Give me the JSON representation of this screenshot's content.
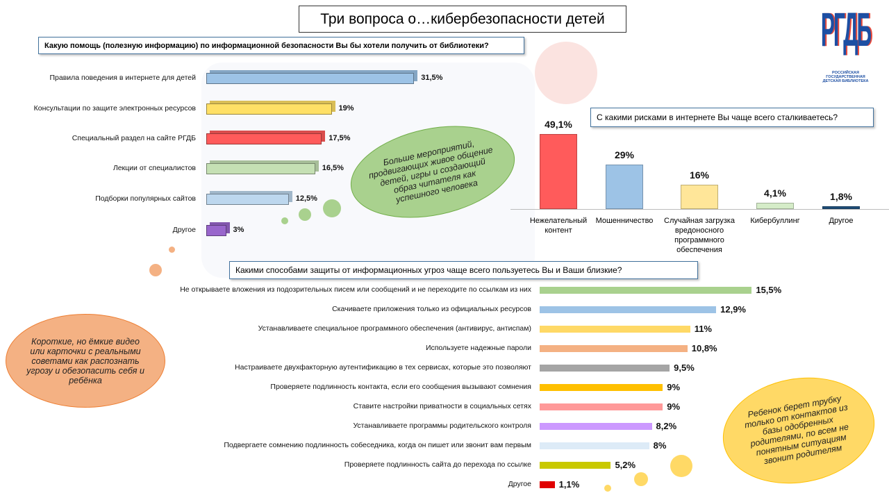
{
  "title": "Три вопроса о…кибербезопасности детей",
  "logo": {
    "mark": "РГДБ",
    "line1": "РОССИЙСКАЯ ГОСУДАРСТВЕННАЯ",
    "line2": "ДЕТСКАЯ БИБЛИОТЕКА"
  },
  "notes": [
    "Больше мероприятий, продвигающих живое общение детей, игры и создающий образ читателя как успешного человека",
    "Короткие, но ёмкие видео или карточки с реальными советами как распознать угрозу и обезопасить себя и ребёнка",
    "Ребенок берет трубку только от контактов из базы одобренных родителями, по всем не понятным ситуациям звонит родителям"
  ],
  "chart_data": [
    {
      "type": "hbar3d",
      "title": "Какую помощь (полезную информацию) по информационной безопасности Вы бы хотели получить от библиотеки?",
      "categories": [
        "Правила поведения в интернете для детей",
        "Консультации по защите электронных ресурсов",
        "Специальный раздел на сайте РГДБ",
        "Лекции от специалистов",
        "Подборки популярных сайтов",
        "Другое"
      ],
      "values": [
        31.5,
        19,
        17.5,
        16.5,
        12.5,
        3
      ],
      "value_labels": [
        "31,5%",
        "19%",
        "17,5%",
        "16,5%",
        "12,5%",
        "3%"
      ],
      "colors": [
        "#9dc3e6",
        "#ffe066",
        "#ff5b5b",
        "#c5e0b4",
        "#bdd7ee",
        "#9966cc"
      ]
    },
    {
      "type": "vbar",
      "title": "С какими рисками в интернете Вы чаще всего сталкиваетесь?",
      "categories": [
        "Нежелательный контент",
        "Мошенничество",
        "Случайная загрузка вредоносного программного обеспечения",
        "Кибербуллинг",
        "Другое"
      ],
      "values": [
        49.1,
        29,
        16,
        4.1,
        1.8
      ],
      "value_labels": [
        "49,1%",
        "29%",
        "16%",
        "4,1%",
        "1,8%"
      ],
      "colors": [
        "#ff5b5b",
        "#9dc3e6",
        "#ffe699",
        "#d5ecc8",
        "#1f4e79"
      ]
    },
    {
      "type": "hbar",
      "title": "Какими способами защиты от информационных угроз чаще всего пользуетесь Вы и Ваши близкие?",
      "categories": [
        "Не открываете вложения из подозрительных писем или сообщений и не переходите по ссылкам из них",
        "Скачиваете приложения только из официальных ресурсов",
        "Устанавливаете специальное программного обеспечения (антивирус, антиспам)",
        "Используете надежные пароли",
        "Настраиваете двухфакторную аутентификацию в тех сервисах, которые это позволяют",
        "Проверяете подлинность контакта, если его сообщения вызывают сомнения",
        "Ставите настройки приватности в социальных сетях",
        "Устанавливаете программы родительского контроля",
        "Подвергаете сомнению подлинность собеседника, когда он пишет или звонит вам первым",
        "Проверяете подлинность сайта до перехода по ссылке",
        "Другое"
      ],
      "values": [
        15.5,
        12.9,
        11,
        10.8,
        9.5,
        9,
        9,
        8.2,
        8,
        5.2,
        1.1
      ],
      "value_labels": [
        "15,5%",
        "12,9%",
        "11%",
        "10,8%",
        "9,5%",
        "9%",
        "9%",
        "8,2%",
        "8%",
        "5,2%",
        "1,1%"
      ],
      "colors": [
        "#a9d18e",
        "#9dc3e6",
        "#ffd966",
        "#f4b183",
        "#a5a5a5",
        "#ffc000",
        "#ff9999",
        "#cc99ff",
        "#ddebf7",
        "#c9c900",
        "#e00000"
      ]
    }
  ]
}
